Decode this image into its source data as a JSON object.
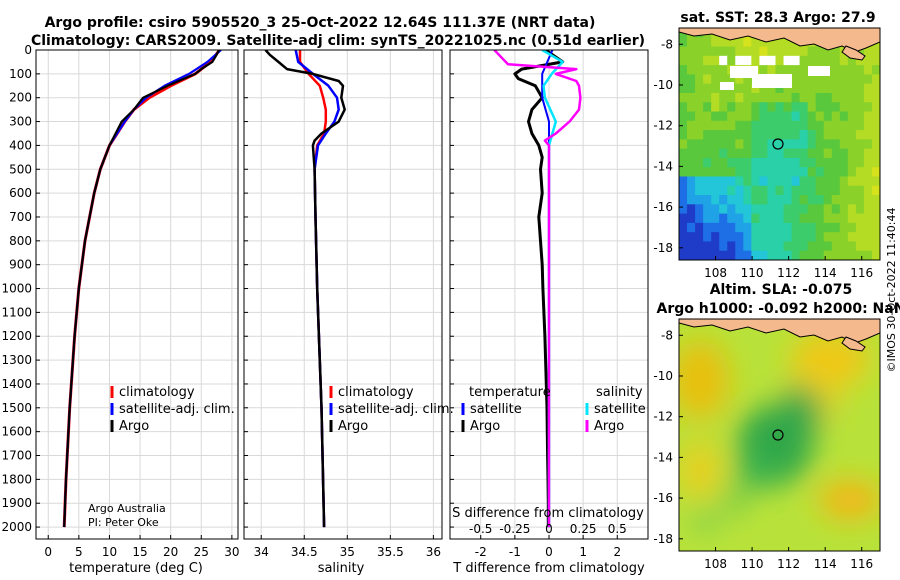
{
  "header": {
    "title_line1": "Argo profile: csiro 5905520_3 25-Oct-2022 12.64S 111.37E (NRT data)",
    "title_line2": "Climatology: CARS2009. Satellite-adj clim: synTS_20221025.nc (0.51d earlier)"
  },
  "colors": {
    "climatology": "#ff0000",
    "satellite_adj": "#0000ff",
    "argo": "#000000",
    "sal_satellite": "#00e5ff",
    "sal_argo": "#ff00ff"
  },
  "credits": {
    "line1": "Argo Australia",
    "line2": "PI: Peter Oke",
    "timestamp": "©IMOS 30-Oct-2022 11:40:44"
  },
  "chart_data": [
    {
      "type": "line",
      "id": "temperature",
      "xlabel": "temperature (deg C)",
      "xlim": [
        -2,
        31
      ],
      "ylim": [
        2050,
        0
      ],
      "xticks": [
        "0",
        "5",
        "10",
        "15",
        "20",
        "25",
        "30"
      ],
      "yticks": [
        "0",
        "100",
        "200",
        "300",
        "400",
        "500",
        "600",
        "700",
        "800",
        "900",
        "1000",
        "1100",
        "1200",
        "1300",
        "1400",
        "1500",
        "1600",
        "1700",
        "1800",
        "1900",
        "2000"
      ],
      "legend": [
        "climatology",
        "satellite-adj. clim.",
        "Argo"
      ],
      "series": [
        {
          "name": "climatology",
          "depth": [
            0,
            50,
            100,
            150,
            200,
            250,
            300,
            400,
            500,
            600,
            800,
            1000,
            1200,
            1500,
            1800,
            2000
          ],
          "values": [
            28.0,
            26.5,
            24.0,
            20.0,
            16.5,
            14.0,
            12.5,
            10.0,
            8.5,
            7.5,
            6.0,
            5.0,
            4.3,
            3.5,
            2.9,
            2.6
          ]
        },
        {
          "name": "satellite-adj. clim.",
          "depth": [
            0,
            50,
            100,
            150,
            200,
            250,
            300,
            400,
            500,
            600,
            800,
            1000,
            1200,
            1500,
            1800,
            2000
          ],
          "values": [
            28.2,
            26.0,
            23.0,
            19.0,
            16.0,
            14.0,
            12.5,
            10.0,
            8.5,
            7.5,
            6.0,
            5.0,
            4.3,
            3.5,
            2.9,
            2.6
          ]
        },
        {
          "name": "Argo",
          "depth": [
            0,
            20,
            50,
            80,
            100,
            150,
            200,
            250,
            300,
            400,
            500,
            600,
            800,
            1000,
            1200,
            1500,
            1800,
            2000
          ],
          "values": [
            27.9,
            27.5,
            26.8,
            25.0,
            24.0,
            19.5,
            15.5,
            14.0,
            12.0,
            10.0,
            8.5,
            7.5,
            6.0,
            5.0,
            4.3,
            3.5,
            2.9,
            2.6
          ]
        }
      ]
    },
    {
      "type": "line",
      "id": "salinity",
      "xlabel": "salinity",
      "xlim": [
        33.8,
        36.1
      ],
      "ylim": [
        2050,
        0
      ],
      "xticks": [
        "34",
        "34.5",
        "35",
        "35.5",
        "36"
      ],
      "legend": [
        "climatology",
        "satellite-adj. clim.",
        "Argo"
      ],
      "series": [
        {
          "name": "climatology",
          "depth": [
            0,
            50,
            100,
            150,
            200,
            250,
            300,
            350,
            400,
            500,
            700,
            1000,
            1500,
            2000
          ],
          "values": [
            34.45,
            34.45,
            34.55,
            34.68,
            34.72,
            34.75,
            34.75,
            34.73,
            34.65,
            34.62,
            34.63,
            34.65,
            34.7,
            34.73
          ]
        },
        {
          "name": "satellite-adj. clim.",
          "depth": [
            0,
            50,
            100,
            150,
            200,
            250,
            300,
            350,
            400,
            500,
            700,
            1000,
            1500,
            2000
          ],
          "values": [
            34.4,
            34.43,
            34.6,
            34.78,
            34.88,
            34.9,
            34.85,
            34.75,
            34.66,
            34.62,
            34.63,
            34.65,
            34.7,
            34.73
          ]
        },
        {
          "name": "Argo",
          "depth": [
            0,
            20,
            50,
            80,
            100,
            130,
            150,
            200,
            250,
            300,
            350,
            380,
            400,
            500,
            700,
            1000,
            1500,
            2000
          ],
          "values": [
            34.05,
            34.1,
            34.2,
            34.3,
            34.6,
            34.9,
            34.95,
            34.93,
            34.97,
            34.9,
            34.7,
            34.62,
            34.6,
            34.62,
            34.63,
            34.65,
            34.7,
            34.73
          ]
        }
      ]
    },
    {
      "type": "line",
      "id": "differences",
      "xlabel": "T difference from climatology",
      "xlabel_top": "S difference from climatology",
      "xlim": [
        -2.9,
        2.9
      ],
      "ylim": [
        2050,
        0
      ],
      "xticks": [
        "-2",
        "-1",
        "0",
        "1",
        "2"
      ],
      "xticks_top": [
        "-0.5",
        "-0.25",
        "0",
        "0.25",
        "0.5"
      ],
      "legend_left_title": "temperature",
      "legend_right_title": "salinity",
      "legend_left": [
        "satellite",
        "Argo"
      ],
      "legend_right": [
        "satellite",
        "Argo"
      ],
      "series": [
        {
          "name": "T satellite",
          "depth": [
            0,
            100,
            200,
            300,
            400,
            600,
            1000,
            1500,
            2000
          ],
          "values": [
            0.1,
            -0.2,
            -0.2,
            0.0,
            0.0,
            0.0,
            0.0,
            0.0,
            0.0
          ]
        },
        {
          "name": "T Argo",
          "depth": [
            0,
            50,
            80,
            100,
            120,
            150,
            200,
            250,
            300,
            350,
            400,
            450,
            500,
            600,
            700,
            800,
            900,
            1000,
            1100,
            1200,
            1300,
            1400,
            1500,
            1600,
            1700,
            1800,
            1900,
            2000
          ],
          "values": [
            -0.1,
            0.4,
            -0.8,
            -1.0,
            -0.9,
            -0.4,
            -0.2,
            -0.5,
            -0.6,
            -0.5,
            -0.3,
            -0.2,
            -0.25,
            -0.2,
            -0.3,
            -0.25,
            -0.2,
            -0.18,
            -0.15,
            -0.12,
            -0.1,
            -0.08,
            -0.06,
            -0.05,
            -0.04,
            -0.03,
            -0.02,
            -0.02
          ]
        },
        {
          "name": "S satellite",
          "depth": [
            0,
            50,
            100,
            150,
            200,
            300,
            400,
            600,
            1000,
            1500,
            2000
          ],
          "values": [
            -0.05,
            0.1,
            0.02,
            -0.04,
            -0.03,
            0.05,
            0.0,
            0.0,
            0.0,
            0.0,
            0.0
          ]
        },
        {
          "name": "S Argo",
          "depth": [
            0,
            30,
            60,
            80,
            100,
            130,
            150,
            200,
            250,
            300,
            350,
            380,
            400,
            500,
            1000,
            2000
          ],
          "values": [
            -0.4,
            -0.35,
            -0.3,
            0.2,
            0.05,
            0.2,
            0.22,
            0.23,
            0.22,
            0.15,
            0.05,
            -0.03,
            0.0,
            0.0,
            0.0,
            0.0
          ]
        }
      ]
    },
    {
      "type": "heatmap",
      "id": "sst_map",
      "title": "sat. SST: 28.3 Argo: 27.9",
      "xlim": [
        106,
        117
      ],
      "ylim": [
        -18.6,
        -7.2
      ],
      "xticks": [
        "108",
        "110",
        "112",
        "114",
        "116"
      ],
      "yticks": [
        "-8",
        "-10",
        "-12",
        "-14",
        "-16",
        "-18"
      ],
      "profile_lon": 111.37,
      "profile_lat": -12.64
    },
    {
      "type": "heatmap",
      "id": "sla_map",
      "title_line1": "Altim. SLA: -0.075",
      "title_line2": "Argo h1000: -0.092 h2000: NaN",
      "xlim": [
        106,
        117
      ],
      "ylim": [
        -18.6,
        -7.2
      ],
      "xticks": [
        "108",
        "110",
        "112",
        "114",
        "116"
      ],
      "yticks": [
        "-8",
        "-10",
        "-12",
        "-14",
        "-16",
        "-18"
      ],
      "profile_lon": 111.37,
      "profile_lat": -12.64
    }
  ]
}
